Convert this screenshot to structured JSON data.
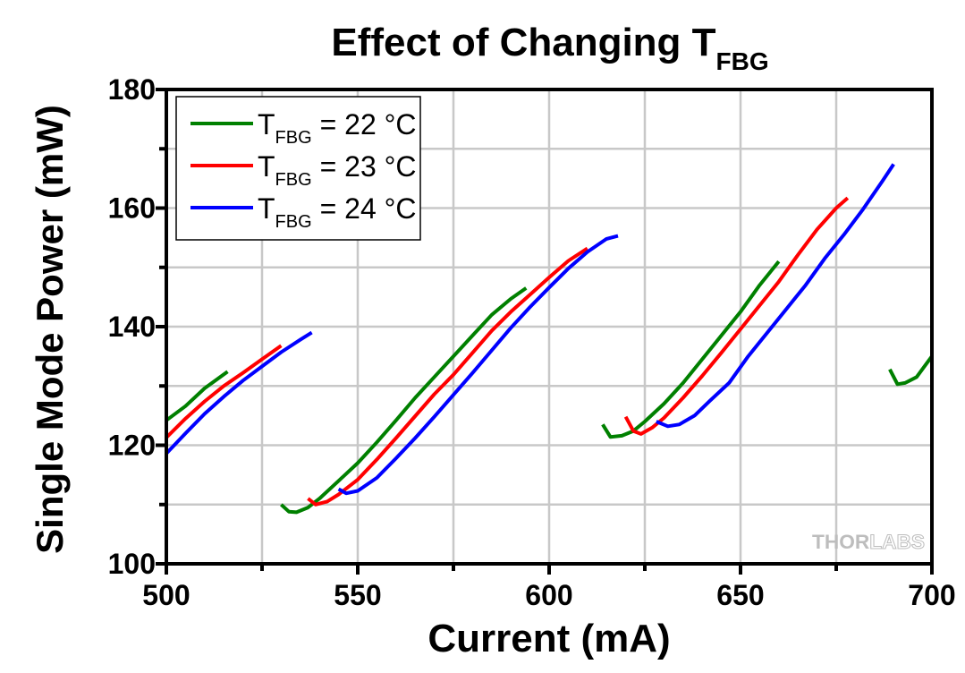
{
  "chart_data": {
    "type": "line",
    "title": "Effect of Changing T",
    "title_subscript": "FBG",
    "xlabel": "Current (mA)",
    "ylabel": "Single Mode Power (mW)",
    "xlim": [
      500,
      700
    ],
    "ylim": [
      100,
      180
    ],
    "xticks": [
      500,
      550,
      600,
      650,
      700
    ],
    "xtick_labels": [
      "500",
      "550",
      "600",
      "650",
      "700"
    ],
    "x_minor_ticks": [
      525,
      575,
      625,
      675
    ],
    "yticks": [
      100,
      120,
      140,
      160,
      180
    ],
    "ytick_labels": [
      "100",
      "120",
      "140",
      "160",
      "180"
    ],
    "y_minor_ticks": [
      110,
      130,
      150,
      170
    ],
    "grid": true,
    "legend_position": "top-left",
    "watermark": {
      "bold": "THOR",
      "light": "LABS"
    },
    "series": [
      {
        "name": "T_FBG = 22 °C",
        "legend_main": "T",
        "legend_sub": "FBG",
        "legend_rest": " = 22 °C",
        "color": "#008000",
        "segments": [
          [
            [
              500,
              124.2
            ],
            [
              505,
              126.6
            ],
            [
              510,
              129.6
            ],
            [
              516,
              132.4
            ]
          ],
          [
            [
              530,
              110
            ],
            [
              532,
              108.8
            ],
            [
              534,
              108.7
            ],
            [
              537,
              109.5
            ],
            [
              540,
              111
            ],
            [
              545,
              114
            ],
            [
              550,
              117
            ],
            [
              555,
              120.5
            ],
            [
              560,
              124.2
            ],
            [
              565,
              128
            ],
            [
              570,
              131.5
            ],
            [
              575,
              135
            ],
            [
              580,
              138.5
            ],
            [
              585,
              142
            ],
            [
              590,
              144.7
            ],
            [
              594,
              146.5
            ]
          ],
          [
            [
              614,
              123.5
            ],
            [
              616,
              121.4
            ],
            [
              619,
              121.6
            ],
            [
              622,
              122.4
            ],
            [
              625,
              124
            ],
            [
              630,
              127
            ],
            [
              635,
              130.5
            ],
            [
              640,
              134.5
            ],
            [
              645,
              138.5
            ],
            [
              650,
              142.5
            ],
            [
              655,
              147
            ],
            [
              660,
              151
            ]
          ],
          [
            [
              689,
              132.8
            ],
            [
              691,
              130.3
            ],
            [
              693,
              130.5
            ],
            [
              696,
              131.5
            ],
            [
              700,
              135
            ]
          ]
        ]
      },
      {
        "name": "T_FBG = 23 °C",
        "legend_main": "T",
        "legend_sub": "FBG",
        "legend_rest": " = 23 °C",
        "color": "#ff0000",
        "segments": [
          [
            [
              500,
              121.3
            ],
            [
              505,
              124.5
            ],
            [
              510,
              127.4
            ],
            [
              515,
              130
            ],
            [
              520,
              132.2
            ],
            [
              525,
              134.5
            ],
            [
              530,
              136.8
            ]
          ],
          [
            [
              537,
              111
            ],
            [
              539,
              110
            ],
            [
              542,
              110.5
            ],
            [
              545,
              111.7
            ],
            [
              550,
              114.2
            ],
            [
              555,
              117.6
            ],
            [
              560,
              121.2
            ],
            [
              565,
              124.9
            ],
            [
              570,
              128.6
            ],
            [
              575,
              131.9
            ],
            [
              580,
              135.6
            ],
            [
              585,
              139.3
            ],
            [
              590,
              142.5
            ],
            [
              595,
              145.4
            ],
            [
              600,
              148.3
            ],
            [
              605,
              151.1
            ],
            [
              610,
              153.2
            ]
          ],
          [
            [
              620,
              124.8
            ],
            [
              622,
              122.4
            ],
            [
              624,
              121.9
            ],
            [
              627,
              123
            ],
            [
              630,
              124.6
            ],
            [
              635,
              128
            ],
            [
              640,
              131.7
            ],
            [
              645,
              135.6
            ],
            [
              650,
              139.6
            ],
            [
              655,
              143.6
            ],
            [
              660,
              147.6
            ],
            [
              665,
              152.1
            ],
            [
              670,
              156.4
            ],
            [
              675,
              160
            ],
            [
              678,
              161.7
            ]
          ]
        ]
      },
      {
        "name": "T_FBG = 24 °C",
        "legend_main": "T",
        "legend_sub": "FBG",
        "legend_rest": " = 24 °C",
        "color": "#0000ff",
        "segments": [
          [
            [
              500,
              118.6
            ],
            [
              505,
              122
            ],
            [
              510,
              125.3
            ],
            [
              515,
              128.2
            ],
            [
              520,
              130.9
            ],
            [
              525,
              133.3
            ],
            [
              530,
              135.7
            ],
            [
              535,
              137.8
            ],
            [
              538,
              139
            ]
          ],
          [
            [
              545,
              112.6
            ],
            [
              547,
              111.9
            ],
            [
              550,
              112.3
            ],
            [
              555,
              114.5
            ],
            [
              560,
              117.8
            ],
            [
              565,
              121.2
            ],
            [
              570,
              124.8
            ],
            [
              575,
              128.5
            ],
            [
              580,
              132.2
            ],
            [
              585,
              136
            ],
            [
              590,
              139.8
            ],
            [
              595,
              143.3
            ],
            [
              600,
              146.6
            ],
            [
              605,
              149.8
            ],
            [
              610,
              152.6
            ],
            [
              615,
              154.8
            ],
            [
              618,
              155.3
            ]
          ],
          [
            [
              628,
              124
            ],
            [
              631,
              123.2
            ],
            [
              634,
              123.5
            ],
            [
              638,
              125
            ],
            [
              642,
              127.5
            ],
            [
              647,
              130.5
            ],
            [
              652,
              135
            ],
            [
              657,
              139
            ],
            [
              662,
              143
            ],
            [
              667,
              147
            ],
            [
              672,
              151.5
            ],
            [
              677,
              155.5
            ],
            [
              682,
              159.8
            ],
            [
              687,
              164.5
            ],
            [
              690,
              167.4
            ]
          ]
        ]
      }
    ]
  }
}
